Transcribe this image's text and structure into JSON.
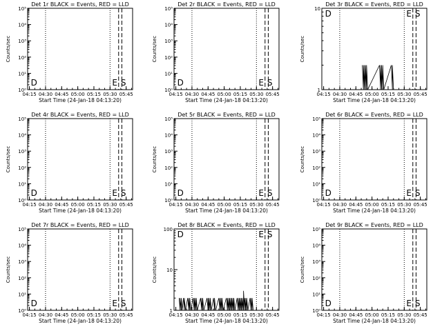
{
  "chart_data": [
    {
      "type": "line",
      "title": "Det 1r BLACK = Events, RED = LLD",
      "xlabel": "Start Time (24-Jan-18 04:13:20)",
      "ylabel": "Counts/sec",
      "x_tick_labels": [
        "04:15",
        "04:30",
        "04:45",
        "05:00",
        "05:15",
        "05:30",
        "05:45"
      ],
      "y_scale": "log",
      "y_tick_labels": [
        "10⁰",
        "10¹",
        "10²",
        "10³",
        "10⁴",
        "10⁵"
      ],
      "ylim": [
        1,
        100000
      ],
      "markers": [
        {
          "label": "D",
          "at": "04:15"
        },
        {
          "label": "E",
          "at": "05:32"
        },
        {
          "label": "S",
          "at": "05:40"
        }
      ],
      "series": []
    },
    {
      "type": "line",
      "title": "Det 2r BLACK = Events, RED = LLD",
      "xlabel": "Start Time (24-Jan-18 04:13:20)",
      "ylabel": "Counts/sec",
      "x_tick_labels": [
        "04:15",
        "04:30",
        "04:45",
        "05:00",
        "05:15",
        "05:30",
        "05:45"
      ],
      "y_scale": "log",
      "y_tick_labels": [
        "10⁰",
        "10¹",
        "10²",
        "10³",
        "10⁴",
        "10⁵"
      ],
      "ylim": [
        1,
        100000
      ],
      "markers": [
        {
          "label": "D",
          "at": "04:15"
        },
        {
          "label": "E",
          "at": "05:32"
        },
        {
          "label": "S",
          "at": "05:40"
        }
      ],
      "series": []
    },
    {
      "type": "line",
      "title": "Det 3r BLACK = Events, RED = LLD",
      "xlabel": "Start Time (24-Jan-18 04:13:20)",
      "ylabel": "Counts/sec",
      "x_tick_labels": [
        "04:15",
        "04:30",
        "04:45",
        "05:00",
        "05:15",
        "05:30",
        "05:45"
      ],
      "y_scale": "log",
      "y_tick_labels": [
        "1",
        "10"
      ],
      "ylim": [
        1,
        10
      ],
      "markers": [
        {
          "label": "D",
          "at": "04:15"
        },
        {
          "label": "E",
          "at": "05:32"
        },
        {
          "label": "S",
          "at": "05:40"
        }
      ],
      "series": [
        {
          "values_x": [
            "04:51",
            "04:52",
            "04:52",
            "04:53",
            "04:53",
            "04:54",
            "04:54",
            "04:55",
            "04:55",
            "04:56",
            "05:07",
            "05:08",
            "05:08",
            "05:09",
            "05:09",
            "05:10",
            "05:10",
            "05:11",
            "05:18",
            "05:19",
            "05:19",
            "05:20"
          ],
          "values_y": [
            2,
            1,
            2,
            1,
            2,
            1,
            2,
            1,
            2,
            1,
            2,
            1,
            2,
            1,
            2,
            1,
            2,
            1,
            2,
            1,
            2,
            1
          ]
        }
      ]
    },
    {
      "type": "line",
      "title": "Det 4r BLACK = Events, RED = LLD",
      "xlabel": "Start Time (24-Jan-18 04:13:20)",
      "ylabel": "Counts/sec",
      "x_tick_labels": [
        "04:15",
        "04:30",
        "04:45",
        "05:00",
        "05:15",
        "05:30",
        "05:45"
      ],
      "y_scale": "log",
      "y_tick_labels": [
        "10⁰",
        "10¹",
        "10²",
        "10³",
        "10⁴",
        "10⁵"
      ],
      "ylim": [
        1,
        100000
      ],
      "markers": [
        {
          "label": "D",
          "at": "04:15"
        },
        {
          "label": "E",
          "at": "05:32"
        },
        {
          "label": "S",
          "at": "05:40"
        }
      ],
      "series": []
    },
    {
      "type": "line",
      "title": "Det 5r BLACK = Events, RED = LLD",
      "xlabel": "Start Time (24-Jan-18 04:13:20)",
      "ylabel": "Counts/sec",
      "x_tick_labels": [
        "04:15",
        "04:30",
        "04:45",
        "05:00",
        "05:15",
        "05:30",
        "05:45"
      ],
      "y_scale": "log",
      "y_tick_labels": [
        "10⁰",
        "10¹",
        "10²",
        "10³",
        "10⁴",
        "10⁵"
      ],
      "ylim": [
        1,
        100000
      ],
      "markers": [
        {
          "label": "D",
          "at": "04:15"
        },
        {
          "label": "E",
          "at": "05:32"
        },
        {
          "label": "S",
          "at": "05:40"
        }
      ],
      "series": []
    },
    {
      "type": "line",
      "title": "Det 6r BLACK = Events, RED = LLD",
      "xlabel": "Start Time (24-Jan-18 04:13:20)",
      "ylabel": "Counts/sec",
      "x_tick_labels": [
        "04:15",
        "04:30",
        "04:45",
        "05:00",
        "05:15",
        "05:30",
        "05:45"
      ],
      "y_scale": "log",
      "y_tick_labels": [
        "10⁰",
        "10¹",
        "10²",
        "10³",
        "10⁴",
        "10⁵"
      ],
      "ylim": [
        1,
        100000
      ],
      "markers": [
        {
          "label": "D",
          "at": "04:15"
        },
        {
          "label": "E",
          "at": "05:32"
        },
        {
          "label": "S",
          "at": "05:40"
        }
      ],
      "series": []
    },
    {
      "type": "line",
      "title": "Det 7r BLACK = Events, RED = LLD",
      "xlabel": "Start Time (24-Jan-18 04:13:20)",
      "ylabel": "Counts/sec",
      "x_tick_labels": [
        "04:15",
        "04:30",
        "04:45",
        "05:00",
        "05:15",
        "05:30",
        "05:45"
      ],
      "y_scale": "log",
      "y_tick_labels": [
        "10⁰",
        "10¹",
        "10²",
        "10³",
        "10⁴",
        "10⁵"
      ],
      "ylim": [
        1,
        100000
      ],
      "markers": [
        {
          "label": "D",
          "at": "04:15"
        },
        {
          "label": "E",
          "at": "05:32"
        },
        {
          "label": "S",
          "at": "05:40"
        }
      ],
      "series": []
    },
    {
      "type": "line",
      "title": "Det 8r BLACK = Events, RED = LLD",
      "xlabel": "Start Time (24-Jan-18 04:13:20)",
      "ylabel": "Counts/sec",
      "x_tick_labels": [
        "04:15",
        "04:30",
        "04:45",
        "05:00",
        "05:15",
        "05:30",
        "05:45"
      ],
      "y_scale": "log",
      "y_tick_labels": [
        "1",
        "10",
        "100"
      ],
      "ylim": [
        1,
        100
      ],
      "markers": [
        {
          "label": "D",
          "at": "04:15"
        },
        {
          "label": "E",
          "at": "05:32"
        },
        {
          "label": "S",
          "at": "05:40"
        }
      ],
      "series": [
        {
          "values_x": [
            "04:18",
            "04:19",
            "04:19",
            "04:20",
            "04:20",
            "04:21",
            "04:22",
            "04:23",
            "04:23",
            "04:24",
            "04:26",
            "04:27",
            "04:27",
            "04:28",
            "04:28",
            "04:29",
            "04:31",
            "04:32",
            "04:32",
            "04:33",
            "04:33",
            "04:34",
            "04:34",
            "04:35",
            "04:38",
            "04:39",
            "04:39",
            "04:40",
            "04:40",
            "04:41",
            "04:44",
            "04:45",
            "04:45",
            "04:46",
            "04:46",
            "04:47",
            "04:47",
            "04:48",
            "04:50",
            "04:51",
            "04:51",
            "04:52",
            "04:55",
            "04:56",
            "04:56",
            "04:57",
            "04:57",
            "04:58",
            "04:58",
            "04:59",
            "05:02",
            "05:03",
            "05:03",
            "05:04",
            "05:04",
            "05:05",
            "05:05",
            "05:06",
            "05:06",
            "05:07",
            "05:07",
            "05:08",
            "05:08",
            "05:09",
            "05:09",
            "05:10",
            "05:12",
            "05:13",
            "05:13",
            "05:14",
            "05:14",
            "05:15",
            "05:15",
            "05:16",
            "05:16",
            "05:17",
            "05:17",
            "05:18",
            "05:18",
            "05:19",
            "05:19",
            "05:20",
            "05:20",
            "05:21",
            "05:21",
            "05:22",
            "05:24",
            "05:25",
            "05:25",
            "05:26",
            "05:26",
            "05:27"
          ],
          "values_y": [
            2,
            1,
            2,
            1,
            2,
            1,
            2,
            1,
            2,
            1,
            2,
            1,
            2,
            1,
            2,
            1,
            2,
            1,
            2,
            1,
            2,
            1,
            2,
            1,
            2,
            1,
            2,
            1,
            2,
            1,
            2,
            1,
            2,
            1,
            2,
            1,
            2,
            1,
            2,
            1,
            2,
            1,
            2,
            1,
            2,
            1,
            2,
            1,
            2,
            1,
            2,
            1,
            2,
            1,
            2,
            1,
            2,
            1,
            2,
            1,
            2,
            1,
            2,
            1,
            2,
            1,
            2,
            1,
            2,
            1,
            2,
            1,
            2,
            1,
            2,
            1,
            2,
            1,
            3,
            1,
            2,
            1,
            2,
            1,
            2,
            1,
            2,
            1,
            2,
            1,
            2,
            1
          ]
        }
      ]
    },
    {
      "type": "line",
      "title": "Det 9r BLACK = Events, RED = LLD",
      "xlabel": "Start Time (24-Jan-18 04:13:20)",
      "ylabel": "Counts/sec",
      "x_tick_labels": [
        "04:15",
        "04:30",
        "04:45",
        "05:00",
        "05:15",
        "05:30",
        "05:45"
      ],
      "y_scale": "log",
      "y_tick_labels": [
        "10⁰",
        "10¹",
        "10²",
        "10³",
        "10⁴",
        "10⁵"
      ],
      "ylim": [
        1,
        100000
      ],
      "markers": [
        {
          "label": "D",
          "at": "04:15"
        },
        {
          "label": "E",
          "at": "05:32"
        },
        {
          "label": "S",
          "at": "05:40"
        }
      ],
      "series": []
    }
  ]
}
